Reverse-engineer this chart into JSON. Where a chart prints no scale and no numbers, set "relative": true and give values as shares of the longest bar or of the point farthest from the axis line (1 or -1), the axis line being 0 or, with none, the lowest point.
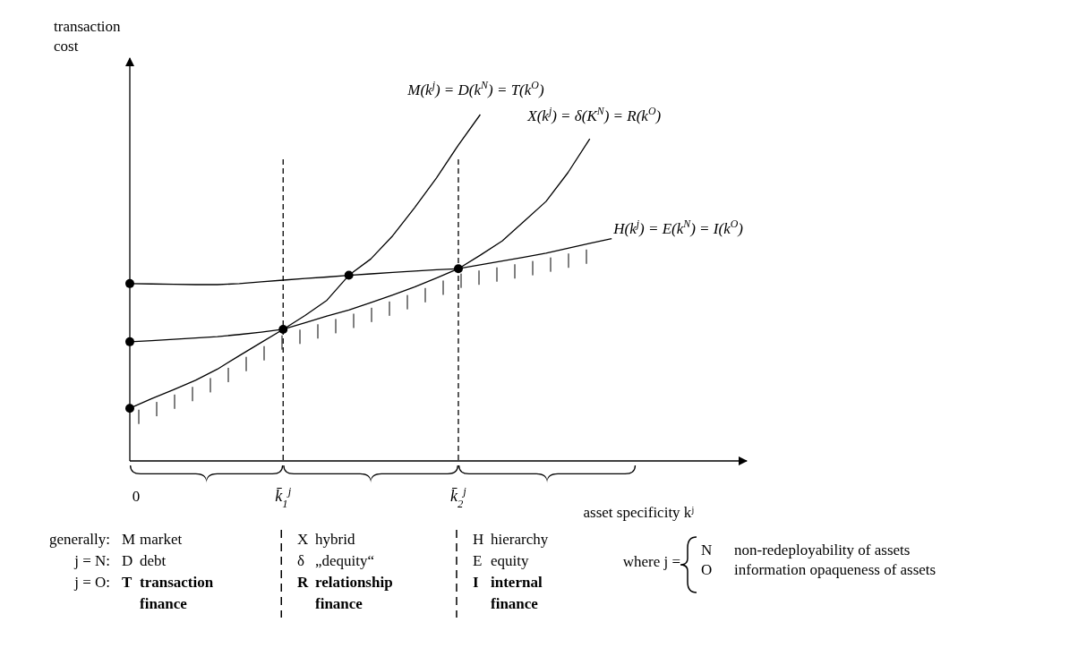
{
  "chart_data": {
    "type": "line",
    "relative": true,
    "xlabel": "asset specificity kʲ",
    "ylabel": "transaction cost",
    "grid": false,
    "categories": [
      "0",
      null,
      null,
      null,
      null,
      null,
      null,
      "k̄$_{1}$$^{j}$",
      null,
      null,
      null,
      null,
      null,
      null,
      null,
      "k̄$_{2}$$^{j}$",
      null,
      null,
      null,
      null,
      null,
      null,
      null,
      null,
      null,
      null,
      null,
      null,
      null
    ],
    "series": [
      {
        "name": "M(k$^{j}$) = D(k$^{N}$) = T(k$^{O}$)",
        "color": "#000000",
        "values": [
          0.152,
          0.18,
          0.206,
          0.233,
          0.265,
          0.304,
          0.342,
          0.38,
          0.42,
          0.464,
          0.536,
          0.583,
          0.65,
          0.731,
          0.817,
          0.912,
          1,
          null,
          null,
          null,
          null,
          null,
          null,
          null,
          null,
          null,
          null,
          null,
          null
        ]
      },
      {
        "name": "X(k$^{j}$) = δ(K$^{N}$) = R(k$^{O}$)",
        "color": "#000000",
        "values": [
          0.344,
          0.347,
          0.351,
          0.355,
          0.359,
          0.365,
          0.372,
          0.38,
          0.399,
          0.418,
          0.436,
          0.457,
          0.479,
          0.502,
          0.528,
          0.555,
          0.594,
          0.635,
          0.692,
          0.749,
          0.832,
          0.93,
          null,
          null,
          null,
          null,
          null,
          null,
          null
        ]
      },
      {
        "name": "H(k$^{j}$) = E(k$^{N}$) = I(k$^{O}$)",
        "color": "#000000",
        "values": [
          0.512,
          0.511,
          0.51,
          0.509,
          0.509,
          0.512,
          0.517,
          0.522,
          0.527,
          0.531,
          0.536,
          0.54,
          0.544,
          0.548,
          0.552,
          0.555,
          0.566,
          0.577,
          0.588,
          0.6,
          0.614,
          0.628,
          0.642,
          null,
          null,
          null,
          null,
          null,
          null
        ]
      },
      {
        "type": "scatter",
        "marker": "circle",
        "color": "#000000",
        "values": [
          0.512,
          null,
          null,
          null,
          null,
          null,
          null,
          null,
          null,
          null,
          0.536,
          null,
          null,
          null,
          null,
          null,
          null,
          null,
          null,
          null,
          null,
          null,
          null,
          null,
          null,
          null,
          null,
          null,
          null
        ]
      },
      {
        "type": "scatter",
        "marker": "circle",
        "color": "#000000",
        "values": [
          0.344,
          null,
          null,
          null,
          null,
          null,
          null,
          0.38,
          null,
          null,
          null,
          null,
          null,
          null,
          null,
          0.555,
          null,
          null,
          null,
          null,
          null,
          null,
          null,
          null,
          null,
          null,
          null,
          null,
          null
        ]
      },
      {
        "type": "scatter",
        "marker": "circle",
        "color": "#000000",
        "values": [
          0.152,
          null,
          null,
          null,
          null,
          null,
          null,
          null,
          null,
          null,
          null,
          null,
          null,
          null,
          null,
          null,
          null,
          null,
          null,
          null,
          null,
          null,
          null,
          null,
          null,
          null,
          null,
          null,
          null
        ]
      }
    ],
    "ref_lines": [
      {
        "axis": "x",
        "value": "k̄$_{1}$$^{j}$",
        "line_style": "dashed",
        "color": "#000000"
      },
      {
        "axis": "x",
        "value": "k̄$_{2}$$^{j}$",
        "line_style": "dashed",
        "color": "#000000"
      }
    ],
    "annotations": [
      "generally:",
      "j = N:",
      "j = O:",
      "M  market",
      "D  debt",
      "T  transaction finance",
      "X  hybrid",
      "δ  „dequity“",
      "R  relationship finance",
      "H  hierarchy",
      "E  equity",
      "I  internal finance",
      "where j =",
      "N  non-redeployability of assets",
      "O  information opaqueness of assets"
    ]
  }
}
